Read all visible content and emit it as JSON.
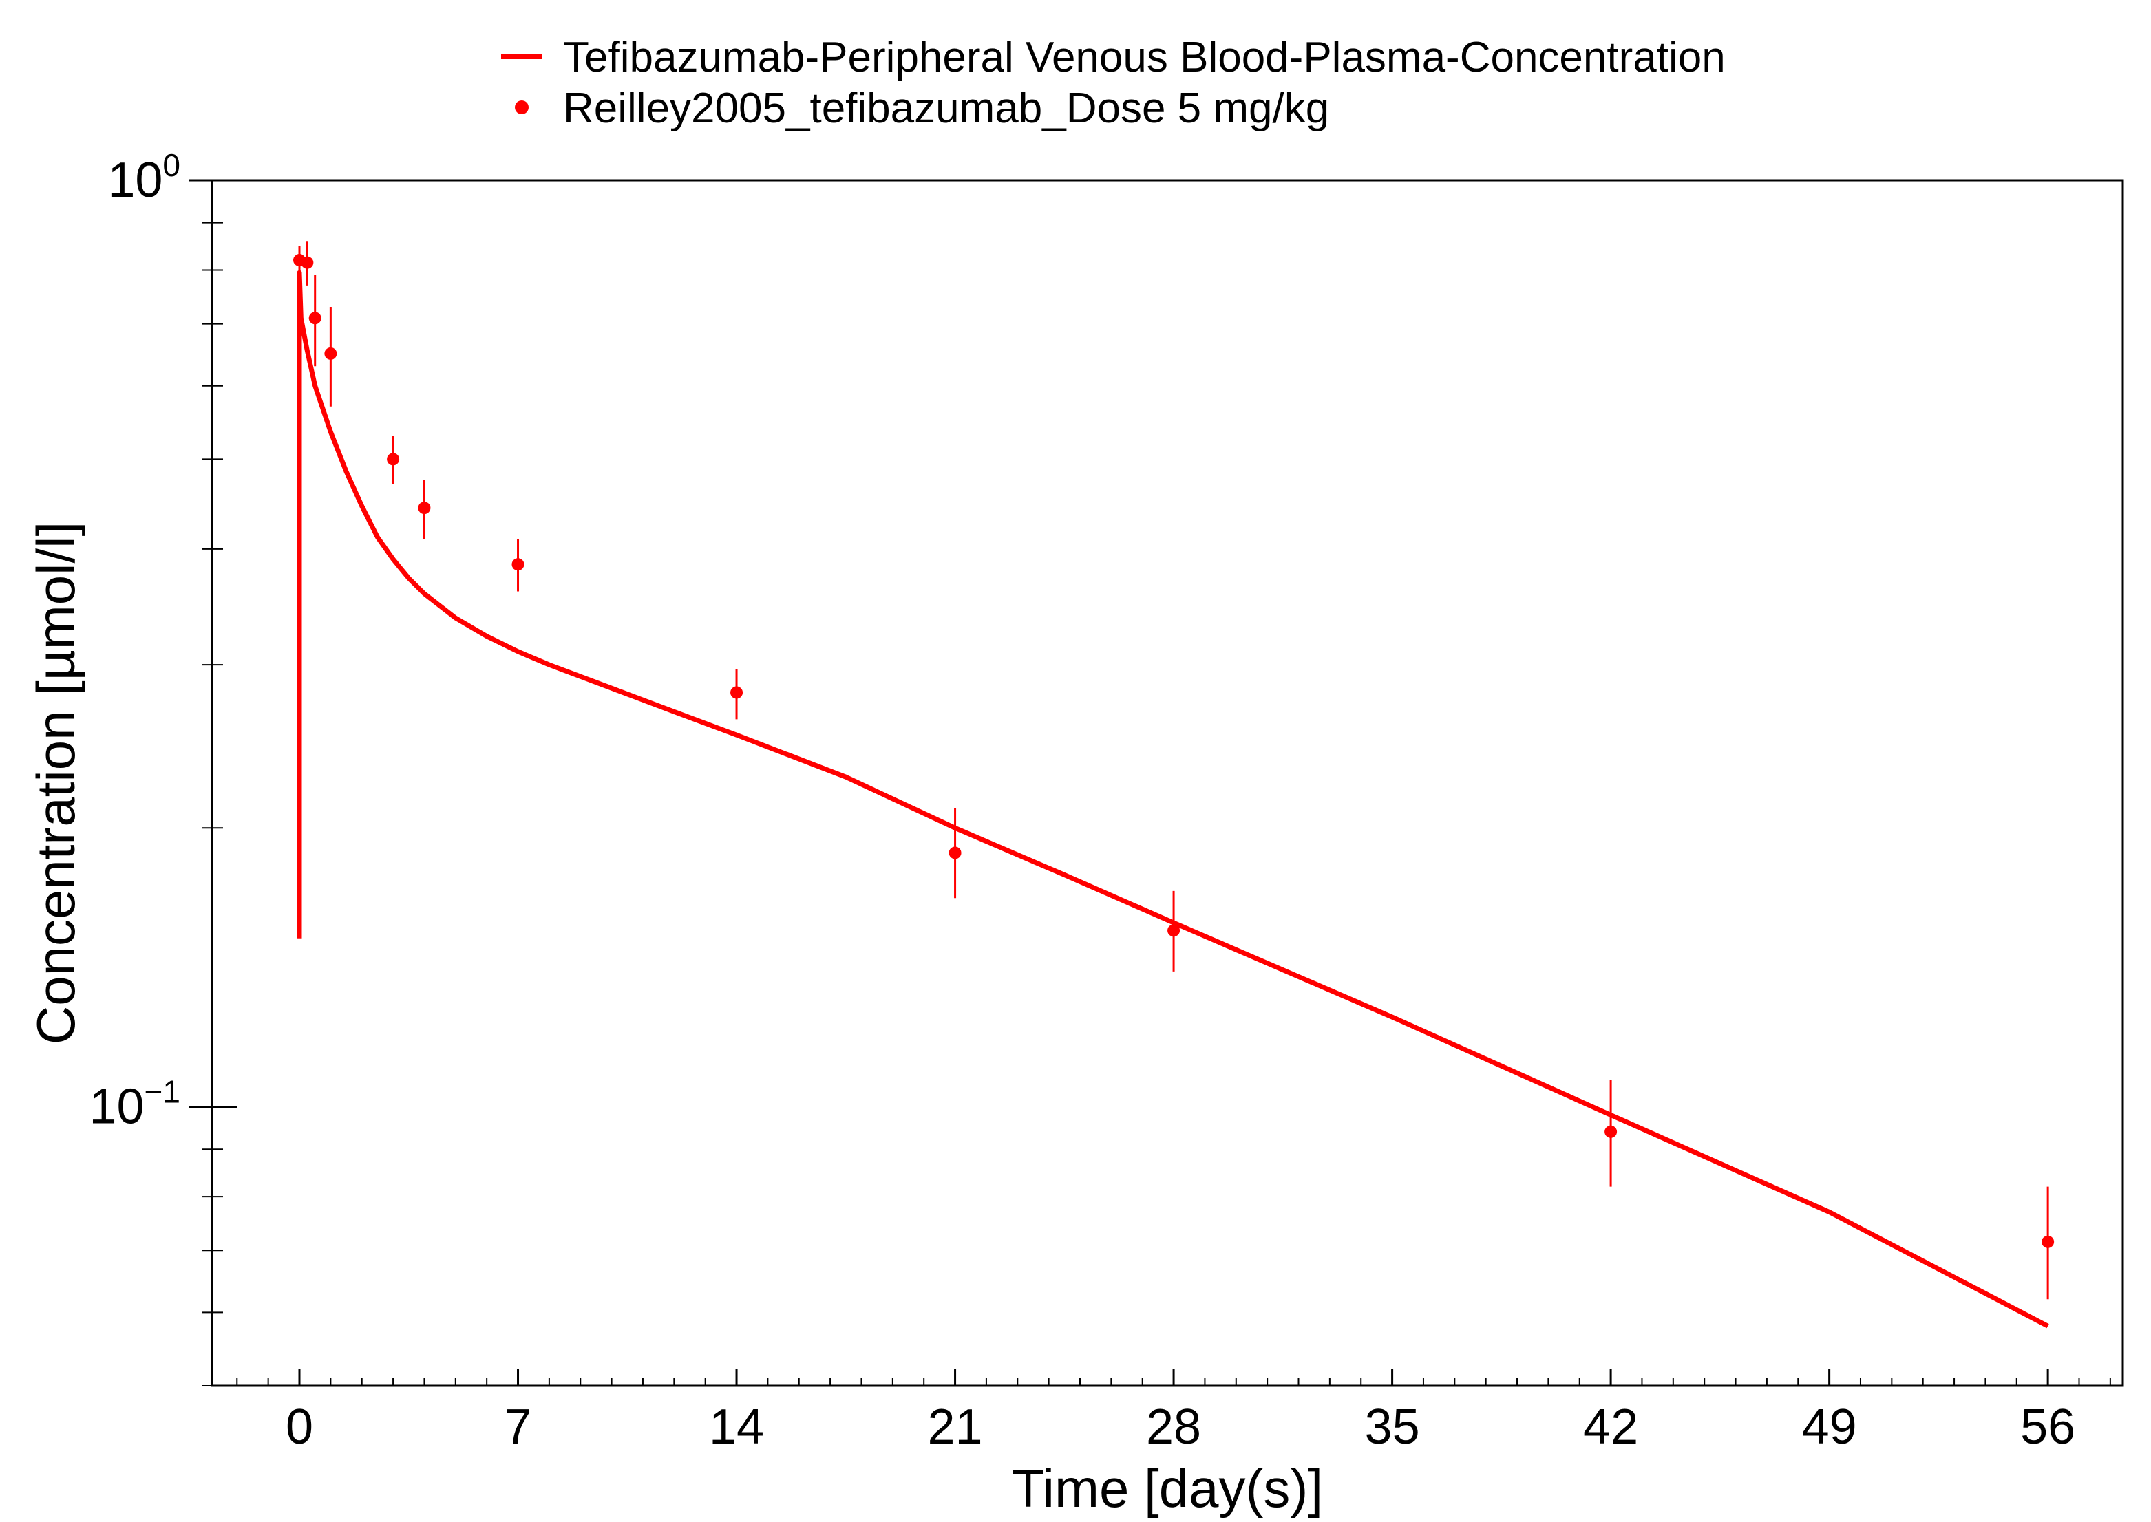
{
  "chart_data": {
    "type": "line",
    "xlabel": "Time [day(s)]",
    "ylabel": "Concentration [µmol/l]",
    "xlim": [
      -2.8,
      58.4
    ],
    "ylim": [
      0.05,
      1.0
    ],
    "y_scale": "log",
    "x_ticks": [
      0,
      7,
      14,
      21,
      28,
      35,
      42,
      49,
      56
    ],
    "x_tick_labels": [
      "0",
      "7",
      "14",
      "21",
      "28",
      "35",
      "42",
      "49",
      "56"
    ],
    "y_ticks": [
      {
        "value": 1.0,
        "base": "10",
        "exponent": "0"
      },
      {
        "value": 0.1,
        "base": "10",
        "exponent": "−1"
      }
    ],
    "grid": false,
    "legend_position": "top-center",
    "series": [
      {
        "name": "Tefibazumab-Peripheral Venous Blood-Plasma-Concentration",
        "kind": "line",
        "color": "#ff0000",
        "x": [
          0,
          0,
          0.05,
          0.25,
          0.5,
          1,
          1.5,
          2,
          2.5,
          3,
          3.5,
          4,
          5,
          6,
          7,
          8,
          10,
          12,
          14,
          17.5,
          21,
          24.5,
          28,
          35,
          42,
          49,
          56
        ],
        "y": [
          0.152,
          0.795,
          0.71,
          0.655,
          0.6,
          0.535,
          0.485,
          0.445,
          0.412,
          0.39,
          0.372,
          0.358,
          0.337,
          0.322,
          0.31,
          0.3,
          0.283,
          0.267,
          0.252,
          0.227,
          0.2,
          0.178,
          0.158,
          0.125,
          0.098,
          0.077,
          0.058
        ]
      },
      {
        "name": "Reilley2005_tefibazumab_Dose 5 mg/kg",
        "kind": "points",
        "color": "#ff0000",
        "points": [
          {
            "x": 0.0,
            "y": 0.82,
            "lo": 0.79,
            "hi": 0.85
          },
          {
            "x": 0.25,
            "y": 0.815,
            "lo": 0.77,
            "hi": 0.86
          },
          {
            "x": 0.5,
            "y": 0.71,
            "lo": 0.63,
            "hi": 0.79
          },
          {
            "x": 1.0,
            "y": 0.65,
            "lo": 0.57,
            "hi": 0.73
          },
          {
            "x": 3.0,
            "y": 0.5,
            "lo": 0.47,
            "hi": 0.53
          },
          {
            "x": 4.0,
            "y": 0.443,
            "lo": 0.41,
            "hi": 0.475
          },
          {
            "x": 7.0,
            "y": 0.385,
            "lo": 0.36,
            "hi": 0.41
          },
          {
            "x": 14.0,
            "y": 0.28,
            "lo": 0.262,
            "hi": 0.297
          },
          {
            "x": 21.0,
            "y": 0.188,
            "lo": 0.168,
            "hi": 0.21
          },
          {
            "x": 28.0,
            "y": 0.155,
            "lo": 0.14,
            "hi": 0.171
          },
          {
            "x": 42.0,
            "y": 0.094,
            "lo": 0.082,
            "hi": 0.107
          },
          {
            "x": 56.0,
            "y": 0.0715,
            "lo": 0.062,
            "hi": 0.082
          }
        ]
      }
    ]
  }
}
